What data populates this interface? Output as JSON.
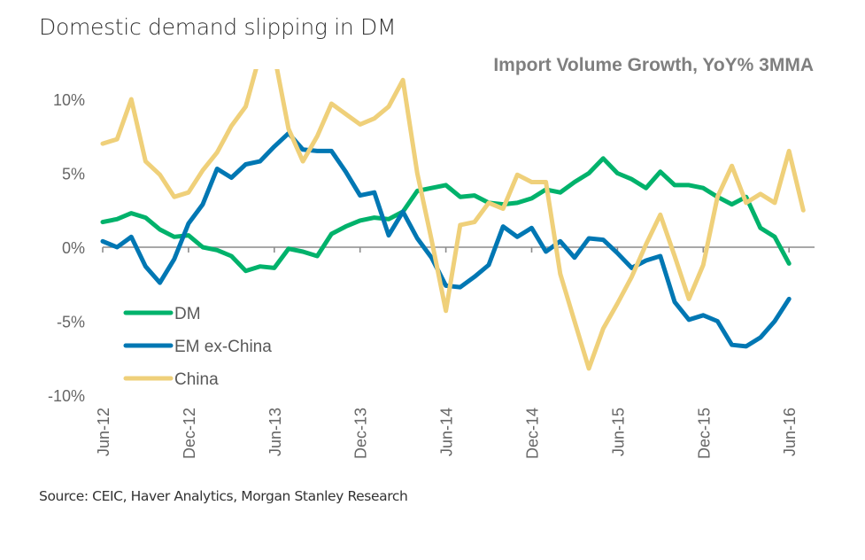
{
  "title": "Domestic demand slipping in DM",
  "source": "Source: CEIC, Haver Analytics, Morgan Stanley Research",
  "chart_data": {
    "type": "line",
    "title": "Import Volume Growth, YoY% 3MMA",
    "xlabel": "",
    "ylabel": "",
    "ylim": [
      -10,
      12
    ],
    "yticks": [
      10,
      5,
      0,
      -5,
      -10
    ],
    "ytick_labels": [
      "10%",
      "5%",
      "0%",
      "-5%",
      "-10%"
    ],
    "xtick_labels": [
      "Jun-12",
      "Dec-12",
      "Jun-13",
      "Dec-13",
      "Jun-14",
      "Dec-14",
      "Jun-15",
      "Dec-15",
      "Jun-16"
    ],
    "x_start": "Jun-12",
    "x_frequency": "monthly",
    "grid": false,
    "legend_position": "bottom-left",
    "series": [
      {
        "name": "DM",
        "color": "#00b26b",
        "values": [
          1.7,
          1.9,
          2.3,
          2.0,
          1.2,
          0.7,
          0.8,
          0.0,
          -0.2,
          -0.6,
          -1.6,
          -1.3,
          -1.4,
          -0.1,
          -0.3,
          -0.6,
          0.9,
          1.4,
          1.8,
          2.0,
          1.9,
          2.4,
          3.8,
          4.0,
          4.2,
          3.4,
          3.5,
          3.0,
          2.9,
          3.0,
          3.3,
          3.9,
          3.7,
          4.4,
          5.0,
          6.0,
          5.0,
          4.6,
          4.0,
          5.1,
          4.2,
          4.2,
          4.0,
          3.4,
          2.9,
          3.4,
          1.3,
          0.7,
          -1.1
        ]
      },
      {
        "name": "EM ex-China",
        "color": "#0077b3",
        "values": [
          0.4,
          0.0,
          0.7,
          -1.3,
          -2.4,
          -0.8,
          1.6,
          2.9,
          5.3,
          4.7,
          5.6,
          5.8,
          6.8,
          7.7,
          6.6,
          6.5,
          6.5,
          5.1,
          3.5,
          3.7,
          0.8,
          2.4,
          0.6,
          -0.7,
          -2.6,
          -2.7,
          -2.0,
          -1.2,
          1.4,
          0.7,
          1.3,
          -0.3,
          0.4,
          -0.7,
          0.6,
          0.5,
          -0.4,
          -1.4,
          -0.9,
          -0.6,
          -3.7,
          -4.9,
          -4.6,
          -5.0,
          -6.6,
          -6.7,
          -6.1,
          -5.0,
          -3.5
        ]
      },
      {
        "name": "China",
        "color": "#efd07a",
        "values": [
          7.0,
          7.3,
          10.0,
          5.8,
          4.9,
          3.4,
          3.7,
          5.2,
          6.4,
          8.2,
          9.5,
          13.0,
          13.0,
          8.0,
          5.8,
          7.5,
          9.7,
          9.0,
          8.3,
          8.7,
          9.5,
          11.3,
          5.0,
          0.5,
          -4.3,
          1.5,
          1.7,
          3.0,
          2.6,
          4.9,
          4.4,
          4.4,
          -1.8,
          -5.0,
          -8.2,
          -5.5,
          -3.8,
          -2.0,
          0.2,
          2.2,
          -0.6,
          -3.5,
          -1.2,
          3.4,
          5.5,
          3.0,
          3.6,
          3.0,
          6.5,
          2.5
        ]
      }
    ]
  }
}
